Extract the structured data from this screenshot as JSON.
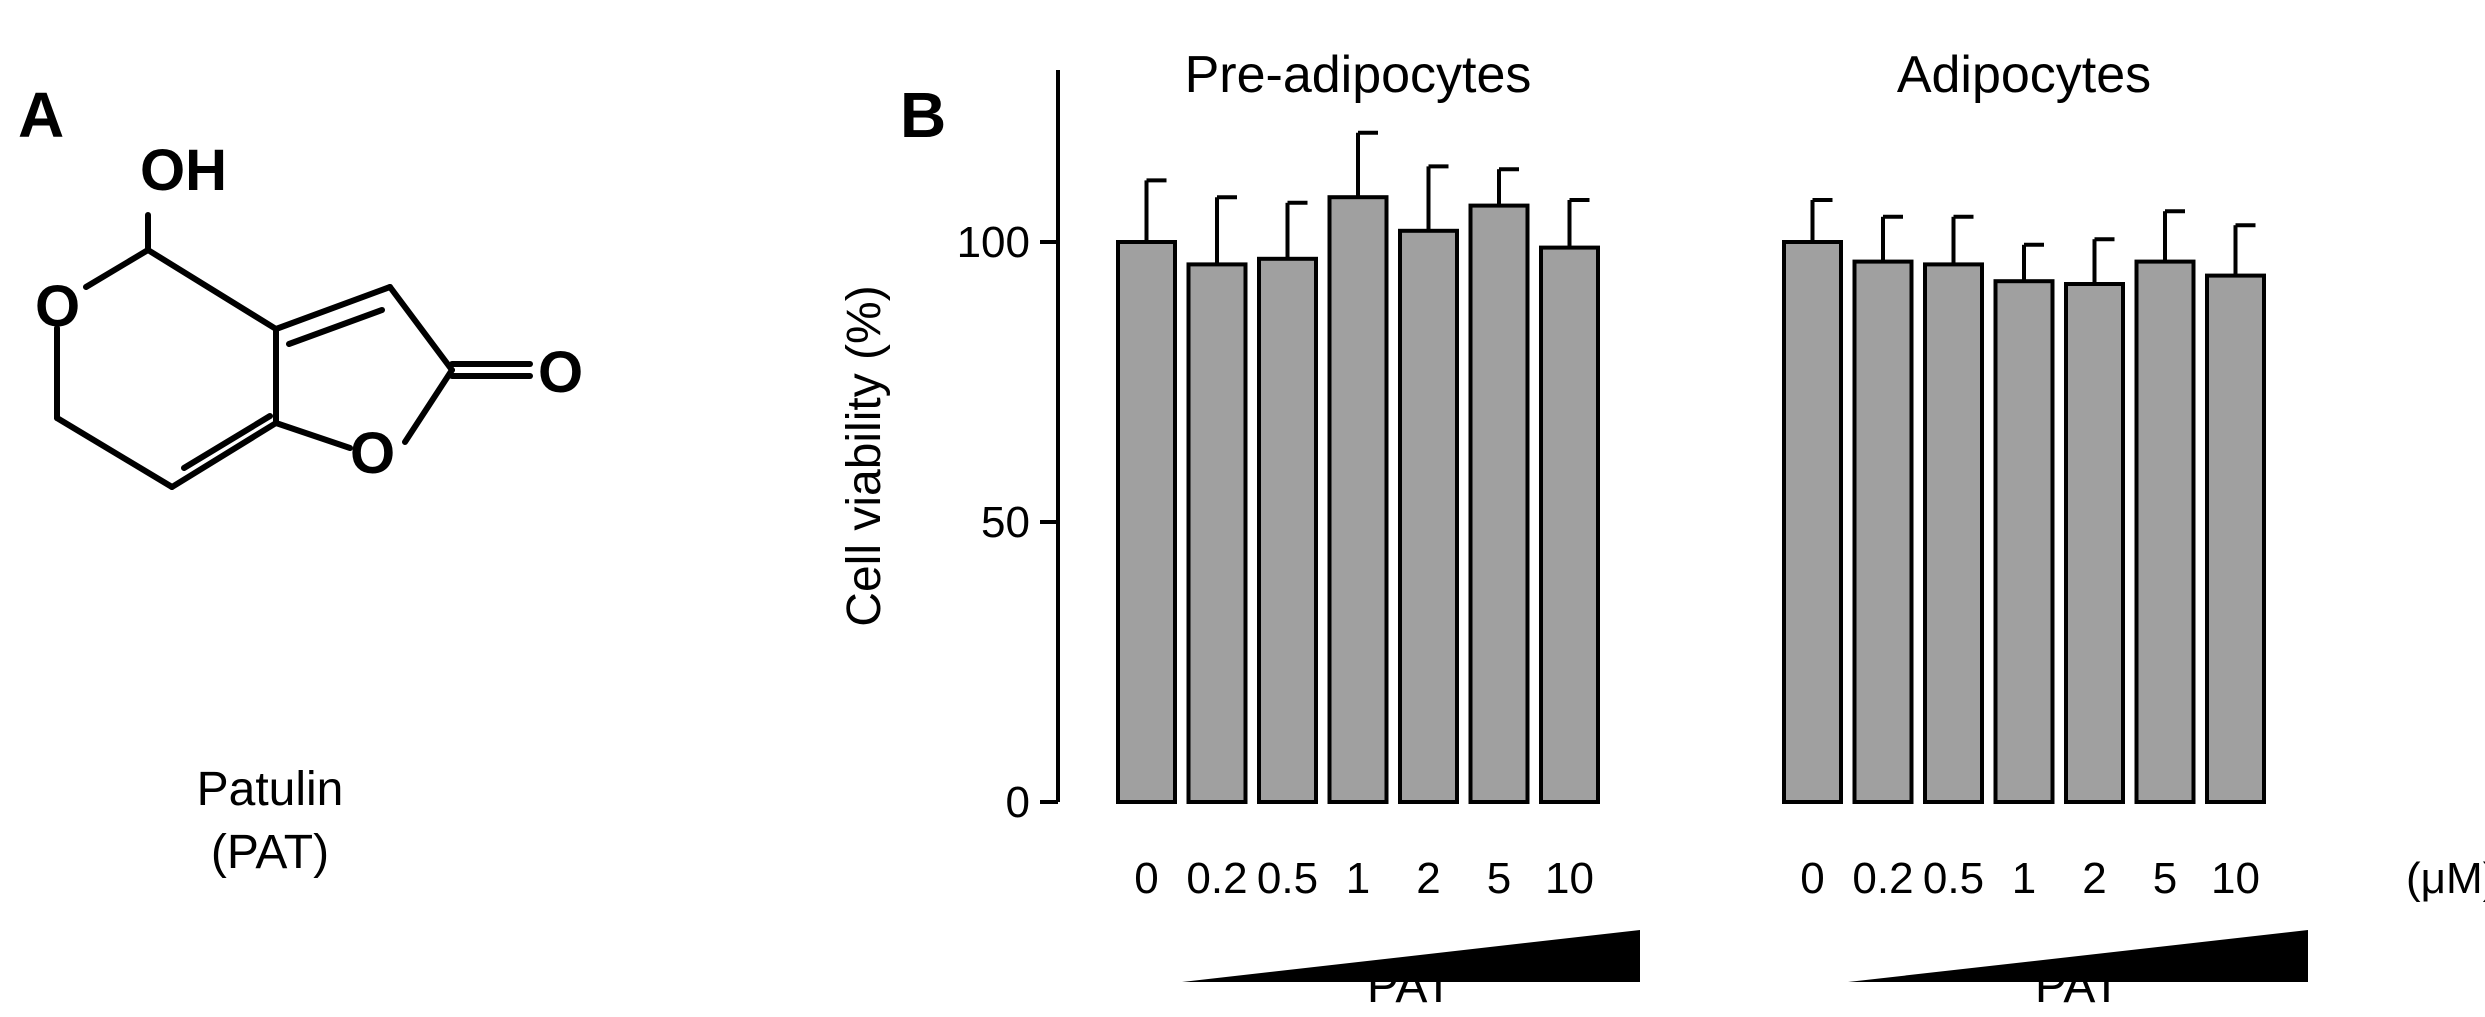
{
  "panels": {
    "a_label": "A",
    "b_label": "B"
  },
  "molecule": {
    "atoms": {
      "oh": "OH",
      "ring_o": "O",
      "carbonyl_o": "O",
      "lactone_o": "O"
    },
    "name_line1": "Patulin",
    "name_line2": "(PAT)"
  },
  "chart_data": {
    "type": "bar",
    "ylabel": "Cell viability (%)",
    "ylim": [
      0,
      130
    ],
    "yticks": [
      0,
      50,
      100
    ],
    "unit_label": "(μM)",
    "bar_color": "#a0a0a0",
    "groups": [
      {
        "title": "Pre-adipocytes",
        "treatment": "PAT",
        "categories": [
          "0",
          "0.2",
          "0.5",
          "1",
          "2",
          "5",
          "10"
        ],
        "values": [
          100,
          96,
          97,
          108,
          102,
          106.5,
          99
        ],
        "errors": [
          11,
          12,
          10,
          11.5,
          11.5,
          6.5,
          8.5
        ]
      },
      {
        "title": "Adipocytes",
        "treatment": "PAT",
        "categories": [
          "0",
          "0.2",
          "0.5",
          "1",
          "2",
          "5",
          "10"
        ],
        "values": [
          100,
          96.5,
          96,
          93,
          92.5,
          96.5,
          94
        ],
        "errors": [
          7.5,
          8,
          8.5,
          6.5,
          8,
          9,
          9
        ]
      }
    ]
  }
}
